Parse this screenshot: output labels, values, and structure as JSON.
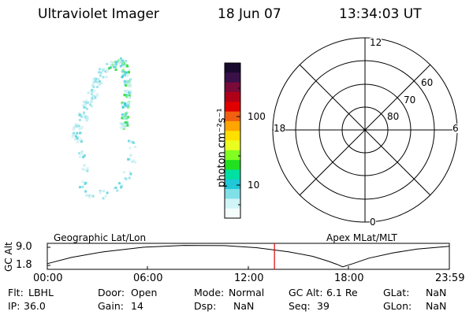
{
  "header": {
    "instrument": "Ultraviolet Imager",
    "date": "18 Jun 07",
    "time": "13:34:03 UT"
  },
  "colorbar": {
    "unit_label": "photon cm⁻²s⁻¹",
    "tick_100": "100",
    "tick_10": "10",
    "colors_top_to_bottom": [
      "#1a0a2e",
      "#3a1048",
      "#7a0a3a",
      "#b00018",
      "#e00000",
      "#f06010",
      "#ffa500",
      "#ffe000",
      "#e8ff20",
      "#80ff20",
      "#20e020",
      "#00e0a0",
      "#20c8d8",
      "#80e0e8",
      "#d0f4f8",
      "#f4fcfc"
    ]
  },
  "polar": {
    "mlt_top": "12",
    "mlt_bottom": "0",
    "mlt_left": "18",
    "mlt_right": "6",
    "lat_60": "60",
    "lat_70": "70",
    "lat_80": "80"
  },
  "timeline": {
    "ylabel": "GC Alt",
    "ytick_top": "9.0",
    "ytick_bottom": "1.8",
    "left_title": "Geographic Lat/Lon",
    "right_title": "Apex MLat/MLT",
    "xticks": [
      "00:00",
      "06:00",
      "12:00",
      "18:00",
      "23:59"
    ],
    "current_time_fraction": 0.565,
    "marker_color": "#e00000"
  },
  "footer": {
    "flt_label": "Flt:",
    "flt_value": "LBHL",
    "ip_label": "IP:",
    "ip_value": "36.0",
    "door_label": "Door:",
    "door_value": "Open",
    "gain_label": "Gain:",
    "gain_value": "14",
    "mode_label": "Mode:",
    "mode_value": "Normal",
    "dsp_label": "Dsp:",
    "dsp_value": "NaN",
    "gcalt_label": "GC Alt:",
    "gcalt_value": "6.1 Re",
    "seq_label": "Seq:",
    "seq_value": "39",
    "glat_label": "GLat:",
    "glat_value": "NaN",
    "glon_label": "GLon:",
    "glon_value": "NaN"
  }
}
